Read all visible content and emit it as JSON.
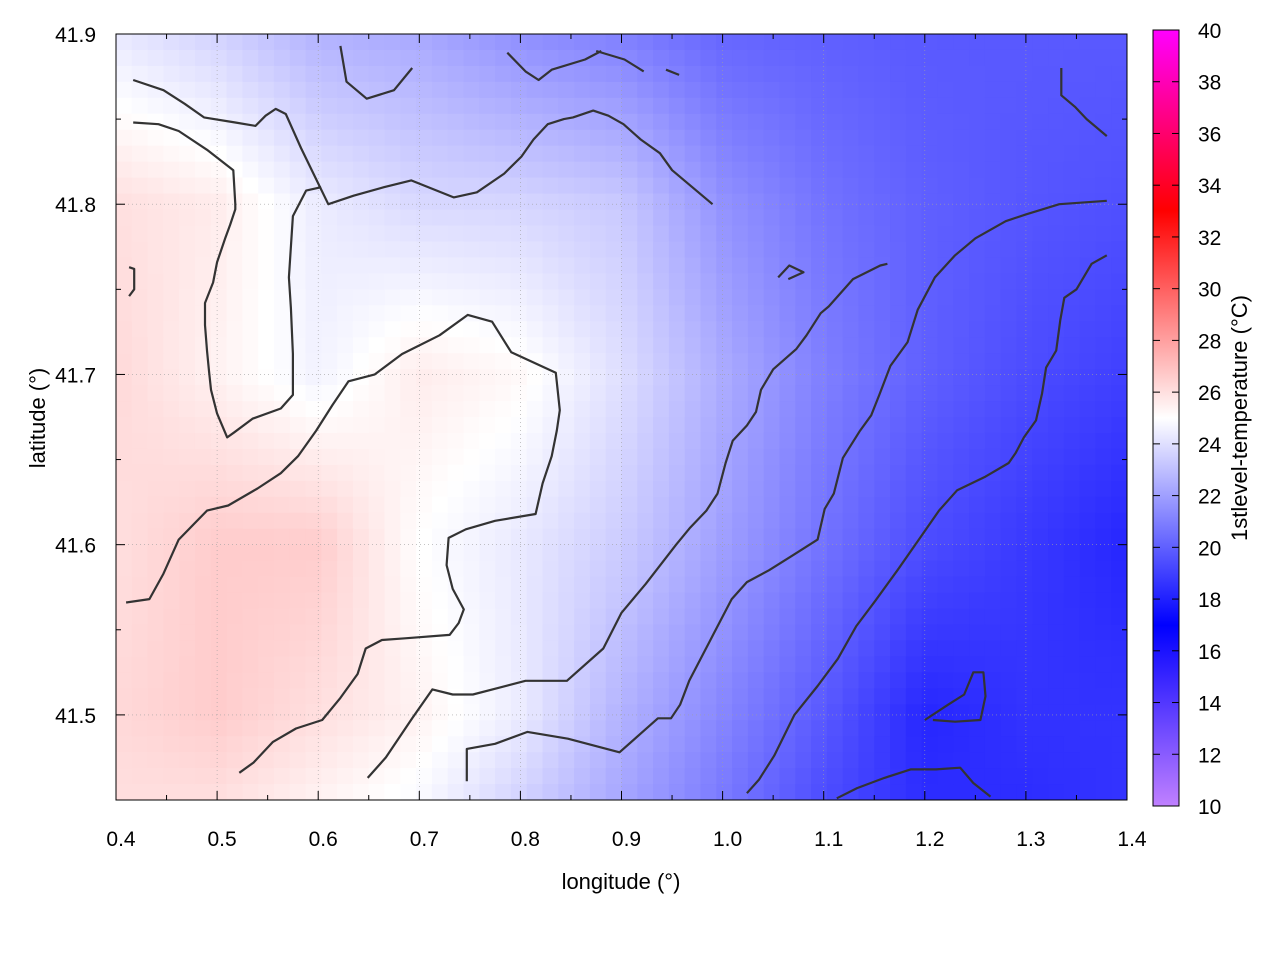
{
  "chart_data": {
    "type": "heatmap",
    "title": "",
    "xlabel": "longitude (°)",
    "ylabel": "latitude (°)",
    "colorbar_label": "1stlevel-temperature (°C)",
    "xlim": [
      0.4,
      1.4
    ],
    "ylim": [
      41.45,
      41.9
    ],
    "zlim": [
      10,
      40
    ],
    "x_ticks": [
      "0.4",
      "0.5",
      "0.6",
      "0.7",
      "0.8",
      "0.9",
      "1.0",
      "1.1",
      "1.2",
      "1.3",
      "1.4"
    ],
    "y_ticks": [
      "41.5",
      "41.6",
      "41.7",
      "41.8",
      "41.9"
    ],
    "colorbar_ticks": [
      "10",
      "12",
      "14",
      "16",
      "18",
      "20",
      "22",
      "24",
      "26",
      "28",
      "30",
      "32",
      "34",
      "36",
      "38",
      "40"
    ],
    "grid": true,
    "colormap": [
      {
        "value": 10,
        "color": "#c080ff"
      },
      {
        "value": 17,
        "color": "#0000ff"
      },
      {
        "value": 25,
        "color": "#ffffff"
      },
      {
        "value": 33,
        "color": "#ff0000"
      },
      {
        "value": 40,
        "color": "#ff00ff"
      }
    ],
    "field_samples": {
      "x": [
        0.4,
        0.5,
        0.6,
        0.7,
        0.8,
        0.9,
        1.0,
        1.1,
        1.2,
        1.3,
        1.4
      ],
      "y": [
        41.9,
        41.8,
        41.7,
        41.6,
        41.5,
        41.45
      ],
      "temperature": [
        [
          24.3,
          23.6,
          22.6,
          22.3,
          21.5,
          21.0,
          20.2,
          20.0,
          19.8,
          19.8,
          19.8
        ],
        [
          26.0,
          25.6,
          24.4,
          23.8,
          23.7,
          23.3,
          21.6,
          20.6,
          20.0,
          19.7,
          19.5
        ],
        [
          26.2,
          25.4,
          24.6,
          25.6,
          25.2,
          24.0,
          22.4,
          21.0,
          20.0,
          19.4,
          19.0
        ],
        [
          26.0,
          26.6,
          26.6,
          25.0,
          24.3,
          23.4,
          22.0,
          20.6,
          19.4,
          18.8,
          18.2
        ],
        [
          26.2,
          26.6,
          26.0,
          25.4,
          24.4,
          22.6,
          21.2,
          19.8,
          18.2,
          18.6,
          18.6
        ],
        [
          26.0,
          26.0,
          25.4,
          24.8,
          23.6,
          22.2,
          20.8,
          19.4,
          18.4,
          18.4,
          18.6
        ]
      ]
    },
    "contours": [
      [
        [
          0.417,
          41.873
        ],
        [
          0.447,
          41.867
        ],
        [
          0.468,
          41.859
        ],
        [
          0.487,
          41.851
        ],
        [
          0.518,
          41.848
        ],
        [
          0.538,
          41.846
        ],
        [
          0.548,
          41.852
        ],
        [
          0.558,
          41.856
        ],
        [
          0.568,
          41.853
        ],
        [
          0.583,
          41.833
        ],
        [
          0.61,
          41.8
        ],
        [
          0.635,
          41.805
        ],
        [
          0.665,
          41.81
        ],
        [
          0.692,
          41.814
        ],
        [
          0.734,
          41.804
        ],
        [
          0.757,
          41.807
        ],
        [
          0.784,
          41.818
        ],
        [
          0.801,
          41.828
        ],
        [
          0.813,
          41.838
        ],
        [
          0.827,
          41.847
        ],
        [
          0.843,
          41.85
        ],
        [
          0.852,
          41.851
        ],
        [
          0.872,
          41.855
        ],
        [
          0.887,
          41.852
        ],
        [
          0.902,
          41.847
        ],
        [
          0.919,
          41.838
        ],
        [
          0.938,
          41.83
        ],
        [
          0.95,
          41.82
        ],
        [
          0.97,
          41.81
        ],
        [
          0.99,
          41.8
        ]
      ],
      [
        [
          0.417,
          41.848
        ],
        [
          0.442,
          41.847
        ],
        [
          0.462,
          41.843
        ],
        [
          0.49,
          41.832
        ],
        [
          0.516,
          41.82
        ],
        [
          0.518,
          41.8
        ],
        [
          0.518,
          41.797
        ],
        [
          0.513,
          41.788
        ],
        [
          0.508,
          41.78
        ],
        [
          0.5,
          41.766
        ],
        [
          0.496,
          41.754
        ],
        [
          0.488,
          41.742
        ],
        [
          0.488,
          41.729
        ],
        [
          0.49,
          41.714
        ],
        [
          0.492,
          41.702
        ],
        [
          0.494,
          41.691
        ],
        [
          0.5,
          41.677
        ],
        [
          0.51,
          41.663
        ],
        [
          0.517,
          41.666
        ],
        [
          0.535,
          41.674
        ],
        [
          0.563,
          41.68
        ],
        [
          0.575,
          41.688
        ],
        [
          0.575,
          41.712
        ],
        [
          0.573,
          41.739
        ],
        [
          0.571,
          41.757
        ],
        [
          0.575,
          41.793
        ],
        [
          0.588,
          41.808
        ],
        [
          0.603,
          41.81
        ]
      ],
      [
        [
          0.622,
          41.893
        ],
        [
          0.628,
          41.872
        ],
        [
          0.648,
          41.862
        ],
        [
          0.675,
          41.867
        ],
        [
          0.693,
          41.88
        ]
      ],
      [
        [
          0.787,
          41.889
        ],
        [
          0.805,
          41.878
        ],
        [
          0.818,
          41.873
        ],
        [
          0.831,
          41.879
        ],
        [
          0.864,
          41.885
        ],
        [
          0.88,
          41.89
        ]
      ],
      [
        [
          0.875,
          41.89
        ],
        [
          0.903,
          41.885
        ],
        [
          0.922,
          41.878
        ]
      ],
      [
        [
          0.944,
          41.879
        ],
        [
          0.957,
          41.876
        ]
      ],
      [
        [
          0.413,
          41.763
        ],
        [
          0.418,
          41.762
        ],
        [
          0.418,
          41.75
        ],
        [
          0.413,
          41.746
        ]
      ],
      [
        [
          0.41,
          41.566
        ],
        [
          0.433,
          41.568
        ],
        [
          0.447,
          41.583
        ],
        [
          0.462,
          41.603
        ],
        [
          0.49,
          41.62
        ],
        [
          0.511,
          41.623
        ],
        [
          0.54,
          41.633
        ],
        [
          0.563,
          41.642
        ],
        [
          0.58,
          41.652
        ],
        [
          0.598,
          41.667
        ],
        [
          0.614,
          41.682
        ],
        [
          0.63,
          41.696
        ],
        [
          0.656,
          41.7
        ],
        [
          0.683,
          41.712
        ],
        [
          0.72,
          41.723
        ],
        [
          0.748,
          41.735
        ],
        [
          0.772,
          41.731
        ],
        [
          0.791,
          41.713
        ],
        [
          0.835,
          41.701
        ],
        [
          0.839,
          41.679
        ],
        [
          0.836,
          41.667
        ],
        [
          0.831,
          41.652
        ],
        [
          0.822,
          41.636
        ],
        [
          0.815,
          41.618
        ],
        [
          0.775,
          41.614
        ],
        [
          0.746,
          41.609
        ],
        [
          0.729,
          41.604
        ],
        [
          0.727,
          41.588
        ],
        [
          0.733,
          41.574
        ],
        [
          0.744,
          41.562
        ],
        [
          0.739,
          41.554
        ],
        [
          0.73,
          41.547
        ],
        [
          0.686,
          41.545
        ],
        [
          0.663,
          41.544
        ],
        [
          0.647,
          41.539
        ],
        [
          0.639,
          41.524
        ],
        [
          0.622,
          41.51
        ],
        [
          0.604,
          41.497
        ],
        [
          0.578,
          41.492
        ],
        [
          0.555,
          41.484
        ],
        [
          0.536,
          41.472
        ],
        [
          0.522,
          41.466
        ]
      ],
      [
        [
          0.649,
          41.463
        ],
        [
          0.667,
          41.475
        ],
        [
          0.693,
          41.498
        ],
        [
          0.713,
          41.515
        ],
        [
          0.733,
          41.512
        ],
        [
          0.753,
          41.512
        ],
        [
          0.779,
          41.516
        ],
        [
          0.805,
          41.52
        ],
        [
          0.846,
          41.52
        ],
        [
          0.882,
          41.539
        ],
        [
          0.9,
          41.56
        ],
        [
          0.924,
          41.577
        ],
        [
          0.954,
          41.6
        ],
        [
          0.968,
          41.61
        ],
        [
          0.984,
          41.62
        ],
        [
          0.995,
          41.63
        ],
        [
          1.003,
          41.648
        ],
        [
          1.01,
          41.661
        ],
        [
          1.024,
          41.67
        ],
        [
          1.033,
          41.678
        ],
        [
          1.038,
          41.691
        ],
        [
          1.05,
          41.703
        ],
        [
          1.073,
          41.715
        ],
        [
          1.083,
          41.723
        ],
        [
          1.097,
          41.736
        ],
        [
          1.105,
          41.74
        ],
        [
          1.129,
          41.756
        ],
        [
          1.156,
          41.764
        ],
        [
          1.163,
          41.765
        ]
      ],
      [
        [
          0.747,
          41.461
        ],
        [
          0.747,
          41.48
        ],
        [
          0.775,
          41.483
        ],
        [
          0.807,
          41.49
        ],
        [
          0.847,
          41.486
        ],
        [
          0.898,
          41.478
        ],
        [
          0.919,
          41.489
        ],
        [
          0.936,
          41.498
        ],
        [
          0.949,
          41.498
        ],
        [
          0.958,
          41.506
        ],
        [
          0.967,
          41.52
        ],
        [
          0.987,
          41.543
        ],
        [
          1.009,
          41.568
        ],
        [
          1.024,
          41.578
        ],
        [
          1.046,
          41.585
        ],
        [
          1.07,
          41.594
        ],
        [
          1.094,
          41.603
        ],
        [
          1.101,
          41.621
        ],
        [
          1.11,
          41.63
        ],
        [
          1.119,
          41.651
        ],
        [
          1.136,
          41.667
        ],
        [
          1.147,
          41.676
        ],
        [
          1.155,
          41.688
        ],
        [
          1.166,
          41.705
        ],
        [
          1.183,
          41.719
        ],
        [
          1.193,
          41.738
        ],
        [
          1.21,
          41.757
        ],
        [
          1.23,
          41.77
        ],
        [
          1.25,
          41.78
        ],
        [
          1.28,
          41.79
        ],
        [
          1.3,
          41.794
        ],
        [
          1.333,
          41.8
        ],
        [
          1.38,
          41.802
        ]
      ],
      [
        [
          1.024,
          41.454
        ],
        [
          1.036,
          41.462
        ],
        [
          1.051,
          41.476
        ],
        [
          1.071,
          41.5
        ],
        [
          1.094,
          41.517
        ],
        [
          1.114,
          41.533
        ],
        [
          1.132,
          41.552
        ],
        [
          1.151,
          41.567
        ],
        [
          1.173,
          41.585
        ],
        [
          1.193,
          41.602
        ],
        [
          1.214,
          41.62
        ],
        [
          1.232,
          41.632
        ],
        [
          1.26,
          41.64
        ],
        [
          1.283,
          41.648
        ],
        [
          1.29,
          41.654
        ],
        [
          1.298,
          41.663
        ],
        [
          1.31,
          41.673
        ],
        [
          1.316,
          41.689
        ],
        [
          1.32,
          41.704
        ],
        [
          1.33,
          41.714
        ],
        [
          1.334,
          41.732
        ],
        [
          1.338,
          41.745
        ],
        [
          1.35,
          41.75
        ],
        [
          1.365,
          41.765
        ],
        [
          1.38,
          41.77
        ]
      ],
      [
        [
          1.113,
          41.451
        ],
        [
          1.133,
          41.457
        ],
        [
          1.16,
          41.463
        ],
        [
          1.186,
          41.468
        ],
        [
          1.211,
          41.468
        ],
        [
          1.235,
          41.469
        ],
        [
          1.248,
          41.46
        ],
        [
          1.265,
          41.452
        ]
      ],
      [
        [
          1.2,
          41.497
        ],
        [
          1.223,
          41.506
        ],
        [
          1.239,
          41.512
        ],
        [
          1.248,
          41.525
        ],
        [
          1.258,
          41.525
        ],
        [
          1.26,
          41.511
        ],
        [
          1.255,
          41.497
        ],
        [
          1.23,
          41.496
        ],
        [
          1.208,
          41.497
        ]
      ],
      [
        [
          1.055,
          41.757
        ],
        [
          1.066,
          41.764
        ],
        [
          1.08,
          41.76
        ],
        [
          1.065,
          41.756
        ]
      ],
      [
        [
          1.335,
          41.88
        ],
        [
          1.335,
          41.864
        ],
        [
          1.349,
          41.857
        ],
        [
          1.36,
          41.85
        ],
        [
          1.38,
          41.84
        ]
      ]
    ]
  }
}
